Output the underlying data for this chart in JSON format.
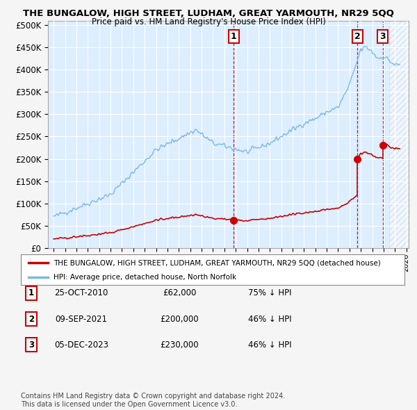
{
  "title": "THE BUNGALOW, HIGH STREET, LUDHAM, GREAT YARMOUTH, NR29 5QQ",
  "subtitle": "Price paid vs. HM Land Registry's House Price Index (HPI)",
  "hpi_label": "HPI: Average price, detached house, North Norfolk",
  "property_label": "THE BUNGALOW, HIGH STREET, LUDHAM, GREAT YARMOUTH, NR29 5QQ (detached house)",
  "background_color": "#f5f5f5",
  "plot_bg_color": "#ddeeff",
  "hpi_color": "#7ab8e8",
  "price_color": "#cc0000",
  "transactions": [
    {
      "date_num": 2010.82,
      "price": 62000,
      "label": "1",
      "note": "25-OCT-2010",
      "pct": "75% ↓ HPI"
    },
    {
      "date_num": 2021.69,
      "price": 200000,
      "label": "2",
      "note": "09-SEP-2021",
      "pct": "46% ↓ HPI"
    },
    {
      "date_num": 2023.93,
      "price": 230000,
      "label": "3",
      "note": "05-DEC-2023",
      "pct": "46% ↓ HPI"
    }
  ],
  "ylim": [
    0,
    510000
  ],
  "xlim_start": 1994.5,
  "xlim_end": 2026.2,
  "grid_color": "#ffffff",
  "footer": "Contains HM Land Registry data © Crown copyright and database right 2024.\nThis data is licensed under the Open Government Licence v3.0."
}
